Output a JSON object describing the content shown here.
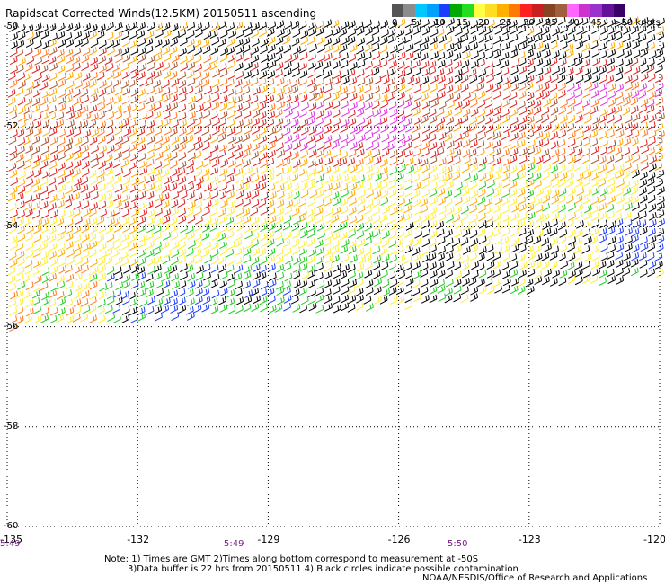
{
  "title": "Rapidscat Corrected Winds(12.5KM) 20150511 ascending",
  "legend": {
    "labels": [
      "0",
      "5",
      "10",
      "15",
      "20",
      "25",
      "30",
      "35",
      "40",
      "45",
      ">50 knots"
    ],
    "colors": [
      "#555555",
      "#8c8c8c",
      "#00c8ff",
      "#00a0ff",
      "#1e3cff",
      "#00aa00",
      "#22dd22",
      "#ffff44",
      "#ffdd22",
      "#ffb000",
      "#ff7a00",
      "#ff2020",
      "#c82020",
      "#884422",
      "#a06040",
      "#ff66ff",
      "#cc33cc",
      "#9933cc",
      "#661199",
      "#3a0066"
    ]
  },
  "map": {
    "longitudes": [
      -135,
      -132,
      -129,
      -126,
      -123,
      -120
    ],
    "longitude_labels": [
      "-135",
      "-132",
      "-129",
      "-126",
      "-123",
      "-120"
    ],
    "latitudes": [
      -50,
      -52,
      -54,
      -56,
      -58,
      -60
    ],
    "latitude_labels": [
      "-50",
      "-52",
      "-54",
      "-56",
      "-58",
      "-60"
    ],
    "times": [
      "5:49",
      "5:49",
      "5:50"
    ],
    "grid": "dotted"
  },
  "notes": [
    "Note: 1) Times are GMT 2)Times along bottom correspond to measurement at -50S",
    "3)Data buffer is 22 hrs from 20150511 4) Black circles indicate possible contamination"
  ],
  "credit": "NOAA/NESDIS/Office of Research and Applications",
  "barb_colors": {
    "calm": "#000000",
    "light": "#1e3cff",
    "moderate": "#22cc22",
    "fresh": "#ffee33",
    "strong": "#ffaa00",
    "gale": "#ff7a20",
    "storm": "#dd2020",
    "severe": "#aa5533",
    "extreme": "#dd33dd"
  }
}
